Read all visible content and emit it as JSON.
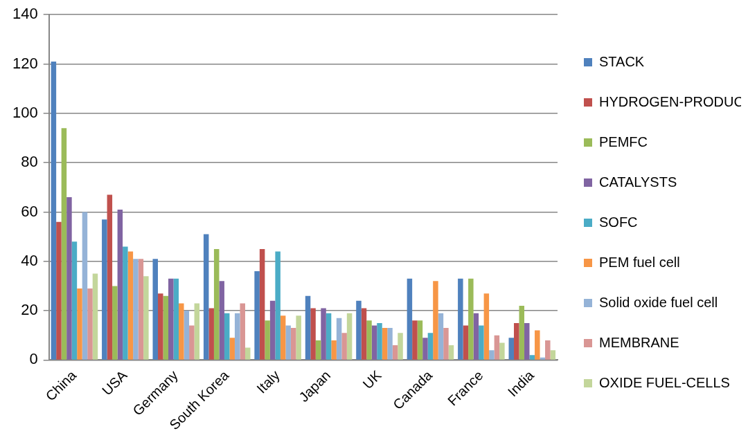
{
  "chart_data": {
    "type": "bar",
    "categories": [
      "China",
      "USA",
      "Germany",
      "South Korea",
      "Italy",
      "Japan",
      "UK",
      "Canada",
      "France",
      "India"
    ],
    "series": [
      {
        "name": "STACK",
        "color": "#4F81BD",
        "values": [
          121,
          57,
          41,
          51,
          36,
          26,
          24,
          33,
          33,
          9
        ]
      },
      {
        "name": "HYDROGEN-PRODUCTION",
        "color": "#C0504D",
        "values": [
          56,
          67,
          27,
          21,
          45,
          21,
          21,
          16,
          14,
          15
        ]
      },
      {
        "name": "PEMFC",
        "color": "#9BBB59",
        "values": [
          94,
          30,
          26,
          45,
          16,
          8,
          16,
          16,
          33,
          22
        ]
      },
      {
        "name": "CATALYSTS",
        "color": "#8064A2",
        "values": [
          66,
          61,
          33,
          32,
          24,
          21,
          14,
          9,
          19,
          15
        ]
      },
      {
        "name": "SOFC",
        "color": "#4BACC6",
        "values": [
          48,
          46,
          33,
          19,
          44,
          19,
          15,
          11,
          14,
          2
        ]
      },
      {
        "name": "PEM fuel cell",
        "color": "#F79646",
        "values": [
          29,
          44,
          23,
          9,
          18,
          8,
          13,
          32,
          27,
          12
        ]
      },
      {
        "name": "Solid oxide fuel cell",
        "color": "#95B3D7",
        "values": [
          60,
          41,
          20,
          19,
          14,
          17,
          13,
          19,
          4,
          1
        ]
      },
      {
        "name": "MEMBRANE",
        "color": "#D99694",
        "values": [
          29,
          41,
          14,
          23,
          13,
          11,
          6,
          13,
          10,
          8
        ]
      },
      {
        "name": "OXIDE FUEL-CELLS",
        "color": "#C3D69B",
        "values": [
          35,
          34,
          23,
          5,
          18,
          19,
          11,
          6,
          7,
          4
        ]
      }
    ],
    "ylim": [
      0,
      140
    ],
    "yticks": [
      0,
      20,
      40,
      60,
      80,
      100,
      120,
      140
    ],
    "grid": true,
    "legend": "right"
  }
}
